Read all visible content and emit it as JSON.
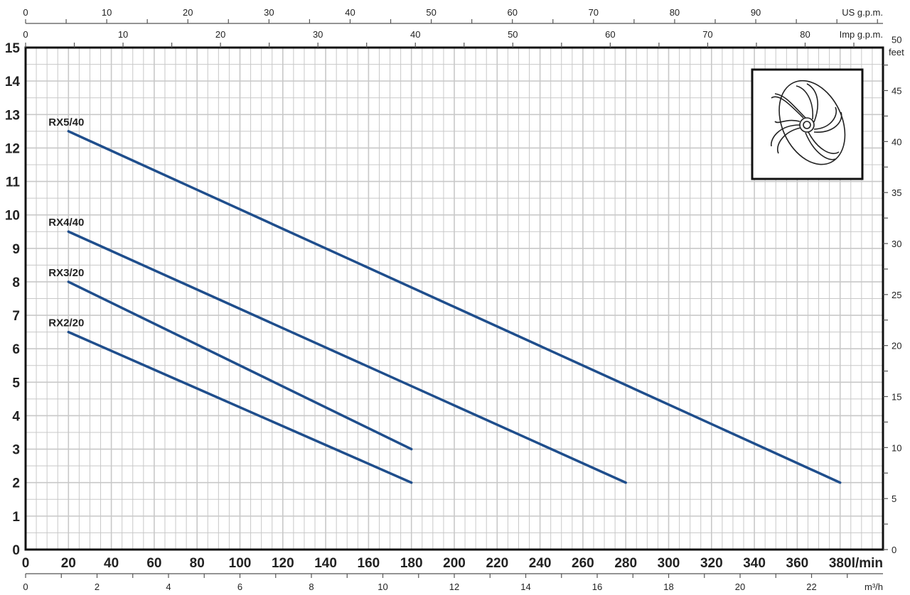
{
  "chart_data": {
    "type": "line",
    "title": "",
    "xlabel": "l/min",
    "ylabel": "",
    "xlim": [
      0,
      400
    ],
    "ylim": [
      0,
      15
    ],
    "grid": true,
    "x_ticks": [
      0,
      20,
      40,
      60,
      80,
      100,
      120,
      140,
      160,
      180,
      200,
      220,
      240,
      260,
      280,
      300,
      320,
      340,
      360,
      380
    ],
    "y_ticks": [
      0,
      1,
      2,
      3,
      4,
      5,
      6,
      7,
      8,
      9,
      10,
      11,
      12,
      13,
      14,
      15
    ],
    "secondary_axes": {
      "us_gpm": {
        "label": "US g.p.m.",
        "ticks": [
          0,
          10,
          20,
          30,
          40,
          50,
          60,
          70,
          80,
          90
        ]
      },
      "imp_gpm": {
        "label": "Imp g.p.m.",
        "ticks": [
          0,
          10,
          20,
          30,
          40,
          50,
          60,
          70,
          80
        ]
      },
      "m3h": {
        "label": "m³/h",
        "ticks": [
          0,
          2,
          4,
          6,
          8,
          10,
          12,
          14,
          16,
          18,
          20,
          22
        ]
      },
      "feet": {
        "label": "feet",
        "ticks": [
          0,
          5,
          10,
          15,
          20,
          25,
          30,
          35,
          40,
          45,
          50
        ]
      }
    },
    "series": [
      {
        "name": "RX5/40",
        "x": [
          20,
          380
        ],
        "y": [
          12.5,
          2
        ]
      },
      {
        "name": "RX4/40",
        "x": [
          20,
          280
        ],
        "y": [
          9.5,
          2
        ]
      },
      {
        "name": "RX3/20",
        "x": [
          20,
          180
        ],
        "y": [
          8,
          3
        ]
      },
      {
        "name": "RX2/20",
        "x": [
          20,
          180
        ],
        "y": [
          6.5,
          2
        ]
      }
    ],
    "colors": {
      "curve": "#1f4e8c",
      "grid": "#c8c8c8",
      "axis": "#111111"
    },
    "inset_image": "impeller-drawing"
  }
}
